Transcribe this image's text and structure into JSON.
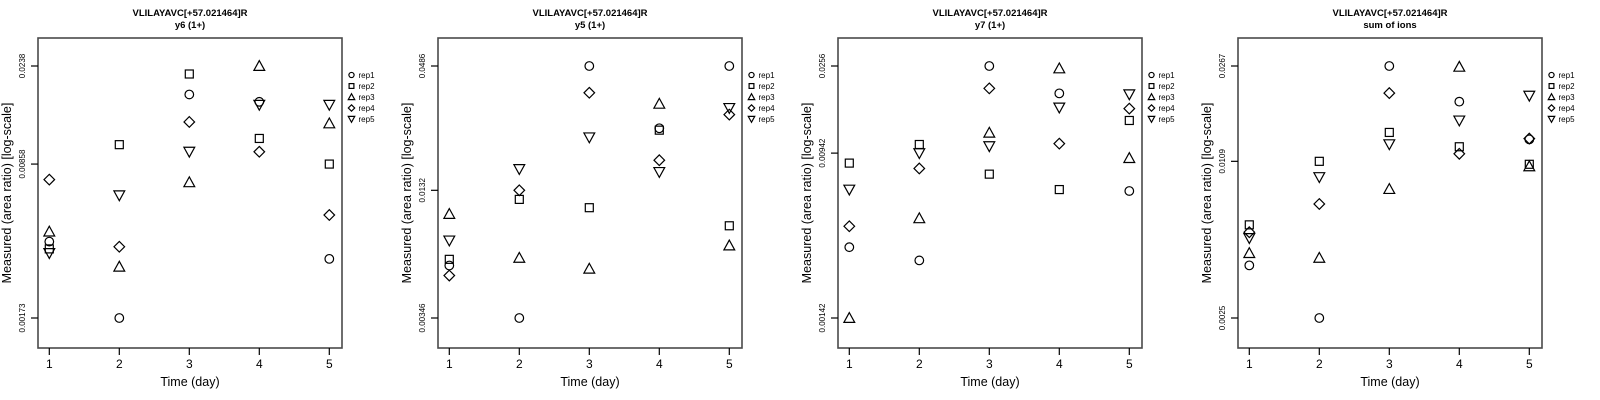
{
  "shared": {
    "ylabel": "Measured (area ratio) [log-scale]",
    "xlabel": "Time (day)",
    "x_tick_labels": [
      "1",
      "2",
      "3",
      "4",
      "5"
    ],
    "legend": [
      {
        "label": "rep1",
        "symbol": "circle"
      },
      {
        "label": "rep2",
        "symbol": "square"
      },
      {
        "label": "rep3",
        "symbol": "triangle-up"
      },
      {
        "label": "rep4",
        "symbol": "diamond"
      },
      {
        "label": "rep5",
        "symbol": "triangle-down"
      }
    ],
    "colors": {
      "marker": "#000000",
      "frame": "#4a4a4a",
      "tick": "#000000",
      "text": "#000000",
      "background": "#ffffff"
    }
  },
  "chart_data": [
    {
      "type": "scatter",
      "title": "VLILAYAVC[+57.021464]R",
      "subtitle": "y6 (1+)",
      "xlabel": "Time (day)",
      "ylabel": "Measured (area ratio) [log-scale]",
      "x": [
        1,
        2,
        3,
        4,
        5
      ],
      "y_scale": "log",
      "legend_position": "right",
      "grid": false,
      "y_tick_labels": [
        "0.0238",
        "0.00858",
        "0.00173"
      ],
      "y_tick_values": [
        0.0238,
        0.00858,
        0.00173
      ],
      "ylim": [
        0.0014,
        0.03
      ],
      "series": [
        {
          "name": "rep1",
          "symbol": "circle",
          "values": [
            0.00383,
            0.00173,
            0.0177,
            0.0164,
            0.0032
          ]
        },
        {
          "name": "rep2",
          "symbol": "square",
          "values": [
            0.00355,
            0.0105,
            0.0219,
            0.0112,
            0.00858
          ]
        },
        {
          "name": "rep3",
          "symbol": "triangle-up",
          "values": [
            0.00425,
            0.00295,
            0.0071,
            0.0238,
            0.0131
          ]
        },
        {
          "name": "rep4",
          "symbol": "diamond",
          "values": [
            0.0073,
            0.00363,
            0.0133,
            0.00975,
            0.00505
          ]
        },
        {
          "name": "rep5",
          "symbol": "triangle-down",
          "values": [
            0.0034,
            0.0062,
            0.00976,
            0.0159,
            0.0159
          ]
        }
      ]
    },
    {
      "type": "scatter",
      "title": "VLILAYAVC[+57.021464]R",
      "subtitle": "y5 (1+)",
      "xlabel": "Time (day)",
      "ylabel": "Measured (area ratio) [log-scale]",
      "x": [
        1,
        2,
        3,
        4,
        5
      ],
      "y_scale": "log",
      "legend_position": "right",
      "grid": false,
      "y_tick_labels": [
        "0.0486",
        "0.0132",
        "0.00346"
      ],
      "y_tick_values": [
        0.0486,
        0.0132,
        0.00346
      ],
      "ylim": [
        0.003,
        0.055
      ],
      "series": [
        {
          "name": "rep1",
          "symbol": "circle",
          "values": [
            0.006,
            0.00346,
            0.0486,
            0.0253,
            0.0486
          ]
        },
        {
          "name": "rep2",
          "symbol": "square",
          "values": [
            0.0064,
            0.012,
            0.011,
            0.0248,
            0.0091
          ]
        },
        {
          "name": "rep3",
          "symbol": "triangle-up",
          "values": [
            0.0103,
            0.0065,
            0.0058,
            0.0327,
            0.0074
          ]
        },
        {
          "name": "rep4",
          "symbol": "diamond",
          "values": [
            0.0054,
            0.0132,
            0.0367,
            0.0181,
            0.0292
          ]
        },
        {
          "name": "rep5",
          "symbol": "triangle-down",
          "values": [
            0.0078,
            0.0165,
            0.023,
            0.016,
            0.0313
          ]
        }
      ]
    },
    {
      "type": "scatter",
      "title": "VLILAYAVC[+57.021464]R",
      "subtitle": "y7 (1+)",
      "xlabel": "Time (day)",
      "ylabel": "Measured (area ratio) [log-scale]",
      "x": [
        1,
        2,
        3,
        4,
        5
      ],
      "y_scale": "log",
      "legend_position": "right",
      "grid": false,
      "y_tick_labels": [
        "0.0256",
        "0.00942",
        "0.00142"
      ],
      "y_tick_values": [
        0.0256,
        0.00942,
        0.00142
      ],
      "ylim": [
        0.0012,
        0.03
      ],
      "series": [
        {
          "name": "rep1",
          "symbol": "circle",
          "values": [
            0.0032,
            0.00275,
            0.0256,
            0.0187,
            0.0061
          ]
        },
        {
          "name": "rep2",
          "symbol": "square",
          "values": [
            0.0084,
            0.0104,
            0.0074,
            0.0062,
            0.0137
          ]
        },
        {
          "name": "rep3",
          "symbol": "triangle-up",
          "values": [
            0.00142,
            0.00446,
            0.0119,
            0.0249,
            0.0089
          ]
        },
        {
          "name": "rep4",
          "symbol": "diamond",
          "values": [
            0.00407,
            0.0079,
            0.0198,
            0.0105,
            0.0157
          ]
        },
        {
          "name": "rep5",
          "symbol": "triangle-down",
          "values": [
            0.0062,
            0.00942,
            0.0102,
            0.0159,
            0.0185
          ]
        }
      ]
    },
    {
      "type": "scatter",
      "title": "VLILAYAVC[+57.021464]R",
      "subtitle": "sum of ions",
      "xlabel": "Time (day)",
      "ylabel": "Measured (area ratio) [log-scale]",
      "x": [
        1,
        2,
        3,
        4,
        5
      ],
      "y_scale": "log",
      "legend_position": "right",
      "grid": false,
      "y_tick_labels": [
        "0.0267",
        "0.0109",
        "0.0025"
      ],
      "y_tick_values": [
        0.0267,
        0.0109,
        0.0025
      ],
      "ylim": [
        0.002,
        0.03
      ],
      "series": [
        {
          "name": "rep1",
          "symbol": "circle",
          "values": [
            0.0041,
            0.0025,
            0.0267,
            0.0191,
            0.0134
          ]
        },
        {
          "name": "rep2",
          "symbol": "square",
          "values": [
            0.006,
            0.0109,
            0.0143,
            0.0125,
            0.0106
          ]
        },
        {
          "name": "rep3",
          "symbol": "triangle-up",
          "values": [
            0.0046,
            0.0044,
            0.0084,
            0.0265,
            0.0104
          ]
        },
        {
          "name": "rep4",
          "symbol": "diamond",
          "values": [
            0.0056,
            0.0073,
            0.0207,
            0.0117,
            0.0135
          ]
        },
        {
          "name": "rep5",
          "symbol": "triangle-down",
          "values": [
            0.0053,
            0.0094,
            0.0128,
            0.016,
            0.0202
          ]
        }
      ]
    }
  ]
}
